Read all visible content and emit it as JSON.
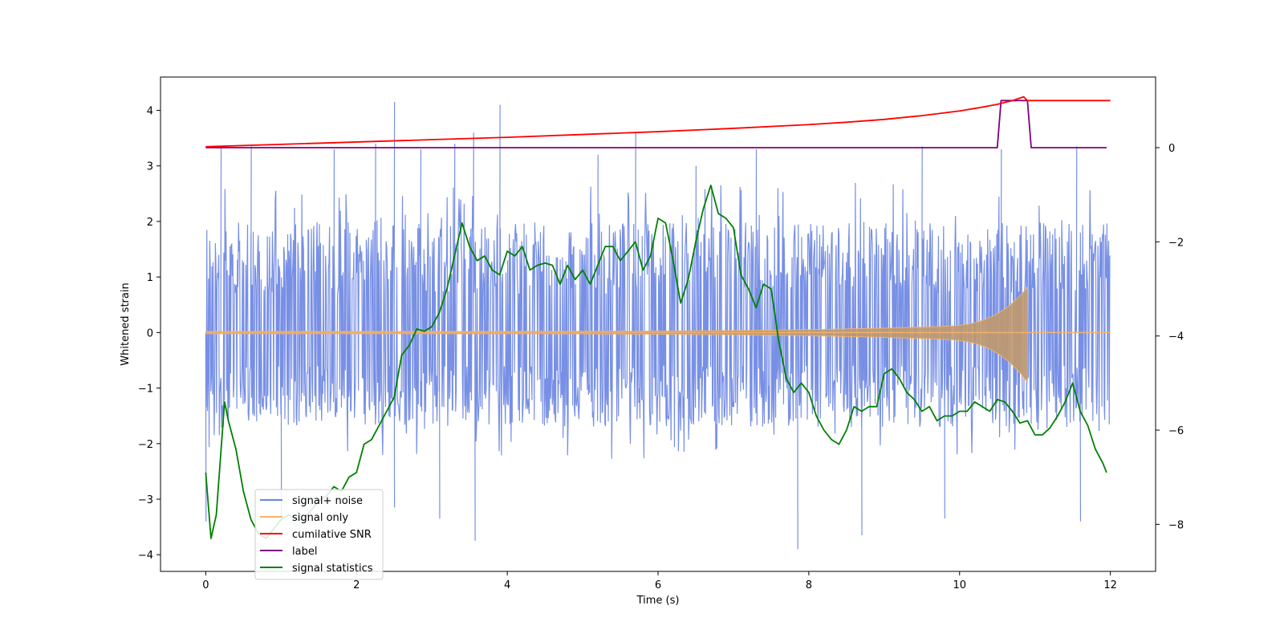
{
  "chart_data": {
    "type": "line",
    "title": "",
    "xlabel": "Time (s)",
    "ylabel": "Whitened strain",
    "xlim": [
      -0.6,
      12.6
    ],
    "ylim": [
      -4.3,
      4.6
    ],
    "y2lim": [
      -9.0,
      1.5
    ],
    "x_ticks": [
      0,
      2,
      4,
      6,
      8,
      10,
      12
    ],
    "y_ticks": [
      -4,
      -3,
      -2,
      -1,
      0,
      1,
      2,
      3,
      4
    ],
    "y2_ticks": [
      -8,
      -6,
      -4,
      -2,
      0
    ],
    "legend_position": "lower-left",
    "colors": {
      "noise": "#6b85e3",
      "signal": "#f5b36b",
      "snr": "#ff0000",
      "label": "#800080",
      "stats": "#008000"
    },
    "series": [
      {
        "name": "signal+ noise",
        "axis": "left",
        "kind": "noise",
        "x_range": [
          0,
          12
        ],
        "amplitude_core": [
          -1.7,
          2.0
        ],
        "amplitude_extreme": [
          -3.9,
          4.15
        ],
        "spikes": [
          [
            0.2,
            3.35
          ],
          [
            0.6,
            3.35
          ],
          [
            1.7,
            3.3
          ],
          [
            2.25,
            3.4
          ],
          [
            2.5,
            4.15
          ],
          [
            2.85,
            3.3
          ],
          [
            3.3,
            3.4
          ],
          [
            3.55,
            3.6
          ],
          [
            3.9,
            4.1
          ],
          [
            5.2,
            3.2
          ],
          [
            5.7,
            3.6
          ],
          [
            6.5,
            3.0
          ],
          [
            7.3,
            3.3
          ],
          [
            9.5,
            3.35
          ],
          [
            10.55,
            3.3
          ],
          [
            11.55,
            3.35
          ],
          [
            3.57,
            -3.75
          ],
          [
            7.85,
            -3.9
          ],
          [
            1.0,
            -3.3
          ],
          [
            2.5,
            -3.15
          ],
          [
            3.1,
            -3.35
          ],
          [
            8.7,
            -3.65
          ],
          [
            9.8,
            -3.35
          ],
          [
            11.6,
            -3.4
          ],
          [
            0.0,
            -3.4
          ]
        ]
      },
      {
        "name": "signal only",
        "axis": "left",
        "kind": "chirp",
        "x_range": [
          0,
          12
        ],
        "merger_time": 10.9,
        "peak_amplitude": 0.8,
        "base_amplitude": 0.02
      },
      {
        "name": "cumilative SNR",
        "axis": "right",
        "kind": "line",
        "x": [
          0,
          1,
          2,
          3,
          4,
          5,
          6,
          7,
          8,
          8.5,
          9,
          9.5,
          10,
          10.3,
          10.5,
          10.7,
          10.85,
          10.9,
          11,
          12
        ],
        "y": [
          0.02,
          0.07,
          0.12,
          0.17,
          0.22,
          0.28,
          0.34,
          0.41,
          0.49,
          0.54,
          0.6,
          0.68,
          0.78,
          0.86,
          0.92,
          1.0,
          1.08,
          1.0,
          1.0,
          1.0
        ]
      },
      {
        "name": "label",
        "axis": "right",
        "kind": "line",
        "x": [
          0,
          10.5,
          10.55,
          10.9,
          10.95,
          11.95
        ],
        "y": [
          0,
          0,
          1,
          1,
          0,
          0
        ]
      },
      {
        "name": "signal statistics",
        "axis": "right",
        "kind": "line",
        "x": [
          0,
          0.07,
          0.14,
          0.25,
          0.3,
          0.4,
          0.5,
          0.6,
          0.7,
          0.8,
          0.9,
          1.0,
          1.1,
          1.2,
          1.3,
          1.4,
          1.5,
          1.6,
          1.7,
          1.8,
          1.9,
          2.0,
          2.1,
          2.2,
          2.3,
          2.4,
          2.5,
          2.6,
          2.7,
          2.8,
          2.9,
          3.0,
          3.1,
          3.2,
          3.3,
          3.4,
          3.5,
          3.6,
          3.7,
          3.8,
          3.9,
          4.0,
          4.1,
          4.2,
          4.3,
          4.4,
          4.5,
          4.6,
          4.7,
          4.8,
          4.9,
          5.0,
          5.1,
          5.2,
          5.3,
          5.4,
          5.5,
          5.6,
          5.7,
          5.8,
          5.9,
          6.0,
          6.1,
          6.2,
          6.3,
          6.4,
          6.5,
          6.6,
          6.7,
          6.8,
          6.9,
          7.0,
          7.1,
          7.2,
          7.3,
          7.4,
          7.5,
          7.6,
          7.7,
          7.8,
          7.9,
          8.0,
          8.1,
          8.2,
          8.3,
          8.4,
          8.5,
          8.6,
          8.7,
          8.8,
          8.9,
          9.0,
          9.1,
          9.2,
          9.3,
          9.4,
          9.5,
          9.6,
          9.7,
          9.8,
          9.9,
          10.0,
          10.1,
          10.2,
          10.3,
          10.4,
          10.5,
          10.6,
          10.7,
          10.8,
          10.9,
          11.0,
          11.1,
          11.2,
          11.3,
          11.4,
          11.5,
          11.6,
          11.7,
          11.8,
          11.9,
          11.95
        ],
        "y": [
          -6.9,
          -8.3,
          -7.8,
          -5.4,
          -5.8,
          -6.4,
          -7.3,
          -7.9,
          -8.2,
          -8.3,
          -8.1,
          -7.9,
          -7.8,
          -7.9,
          -7.9,
          -7.7,
          -7.5,
          -7.4,
          -7.2,
          -7.3,
          -7.0,
          -6.9,
          -6.3,
          -6.2,
          -5.9,
          -5.6,
          -5.3,
          -4.4,
          -4.2,
          -3.85,
          -3.9,
          -3.8,
          -3.5,
          -3.0,
          -2.3,
          -1.6,
          -2.1,
          -2.4,
          -2.3,
          -2.6,
          -2.7,
          -2.2,
          -2.3,
          -2.1,
          -2.6,
          -2.5,
          -2.45,
          -2.5,
          -2.9,
          -2.5,
          -2.8,
          -2.6,
          -2.9,
          -2.5,
          -2.1,
          -2.1,
          -2.4,
          -2.2,
          -2.0,
          -2.6,
          -2.3,
          -1.5,
          -1.6,
          -2.4,
          -3.3,
          -2.8,
          -2.0,
          -1.3,
          -0.8,
          -1.4,
          -1.5,
          -1.7,
          -2.7,
          -3.0,
          -3.4,
          -2.9,
          -3.0,
          -4.1,
          -4.9,
          -5.2,
          -5.0,
          -5.2,
          -5.7,
          -6.0,
          -6.2,
          -6.3,
          -6.0,
          -5.5,
          -5.6,
          -5.5,
          -5.5,
          -4.8,
          -4.7,
          -4.9,
          -5.2,
          -5.35,
          -5.6,
          -5.5,
          -5.8,
          -5.7,
          -5.7,
          -5.6,
          -5.6,
          -5.4,
          -5.5,
          -5.6,
          -5.35,
          -5.4,
          -5.6,
          -5.85,
          -5.8,
          -6.1,
          -6.1,
          -5.95,
          -5.7,
          -5.4,
          -5.0,
          -5.6,
          -5.9,
          -6.4,
          -6.7,
          -6.9
        ]
      }
    ]
  }
}
